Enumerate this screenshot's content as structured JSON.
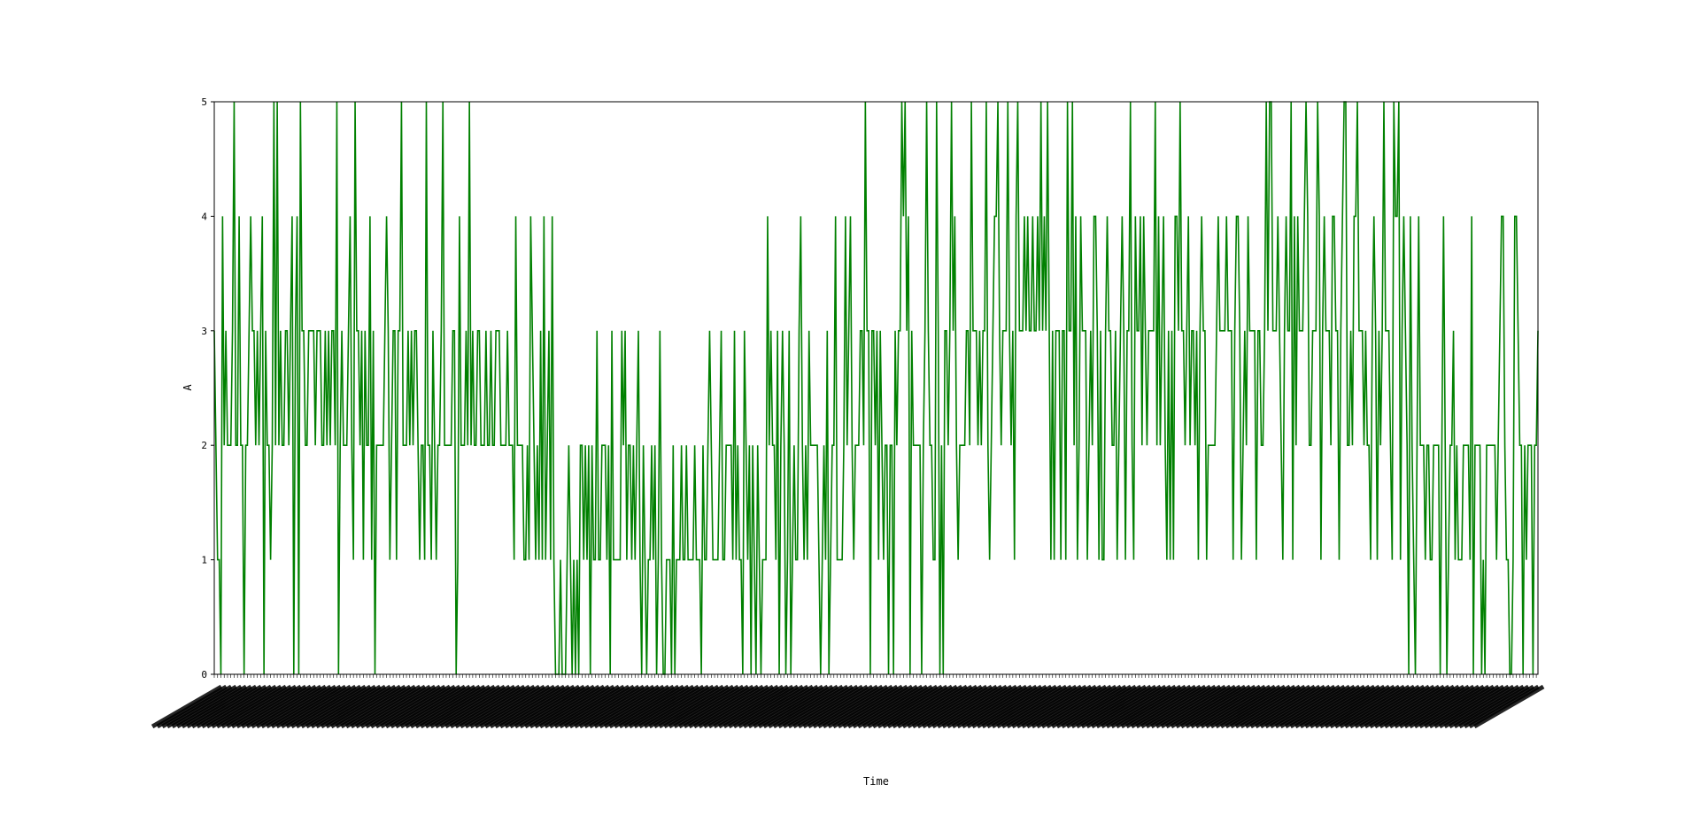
{
  "chart_data": {
    "type": "line",
    "title": "",
    "xlabel": "Time",
    "ylabel": "A",
    "ylim": [
      0,
      5
    ],
    "yticks": [
      "0",
      "1",
      "2",
      "3",
      "4",
      "5"
    ],
    "grid": false,
    "legend": "none",
    "series_color": "#008000",
    "point_count": 800,
    "x_tick_labels_legible": false,
    "segments": [
      {
        "from": 0,
        "to": 40,
        "low": 0,
        "high": 5,
        "bias": 2.3
      },
      {
        "from": 40,
        "to": 80,
        "low": 0,
        "high": 5,
        "bias": 2.5
      },
      {
        "from": 80,
        "to": 120,
        "low": 0,
        "high": 5,
        "bias": 2.2
      },
      {
        "from": 120,
        "to": 175,
        "low": 0,
        "high": 5,
        "bias": 2.0
      },
      {
        "from": 175,
        "to": 205,
        "low": 0,
        "high": 4,
        "bias": 1.6
      },
      {
        "from": 205,
        "to": 330,
        "low": 0,
        "high": 3,
        "bias": 1.4
      },
      {
        "from": 330,
        "to": 390,
        "low": 0,
        "high": 4,
        "bias": 1.6
      },
      {
        "from": 390,
        "to": 460,
        "low": 0,
        "high": 5,
        "bias": 2.4
      },
      {
        "from": 460,
        "to": 560,
        "low": 1,
        "high": 5,
        "bias": 3.0
      },
      {
        "from": 560,
        "to": 720,
        "low": 1,
        "high": 5,
        "bias": 3.0
      },
      {
        "from": 720,
        "to": 800,
        "low": 0,
        "high": 4,
        "bias": 1.8
      }
    ]
  }
}
